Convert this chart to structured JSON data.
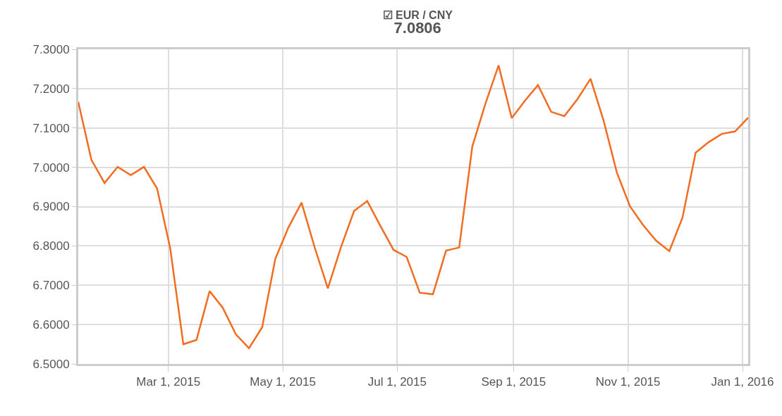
{
  "chart_data": {
    "type": "line",
    "title": "☑ EUR / CNY",
    "subtitle": "7.0806",
    "x": [
      "2015-01-12",
      "2015-01-19",
      "2015-01-26",
      "2015-02-02",
      "2015-02-09",
      "2015-02-16",
      "2015-02-23",
      "2015-03-02",
      "2015-03-09",
      "2015-03-16",
      "2015-03-23",
      "2015-03-30",
      "2015-04-06",
      "2015-04-13",
      "2015-04-20",
      "2015-04-27",
      "2015-05-04",
      "2015-05-11",
      "2015-05-18",
      "2015-05-25",
      "2015-06-01",
      "2015-06-08",
      "2015-06-15",
      "2015-06-22",
      "2015-06-29",
      "2015-07-06",
      "2015-07-13",
      "2015-07-20",
      "2015-07-27",
      "2015-08-03",
      "2015-08-10",
      "2015-08-17",
      "2015-08-24",
      "2015-08-31",
      "2015-09-07",
      "2015-09-14",
      "2015-09-21",
      "2015-09-28",
      "2015-10-05",
      "2015-10-12",
      "2015-10-19",
      "2015-10-26",
      "2015-11-02",
      "2015-11-09",
      "2015-11-16",
      "2015-11-23",
      "2015-11-30",
      "2015-12-07",
      "2015-12-14",
      "2015-12-21",
      "2015-12-28",
      "2016-01-04"
    ],
    "series": [
      {
        "color": "#f26d21",
        "values": [
          7.166,
          7.019,
          6.96,
          7.001,
          6.98,
          7.001,
          6.946,
          6.794,
          6.55,
          6.561,
          6.685,
          6.643,
          6.575,
          6.54,
          6.593,
          6.767,
          6.847,
          6.91,
          6.796,
          6.692,
          6.797,
          6.889,
          6.914,
          6.851,
          6.79,
          6.772,
          6.681,
          6.677,
          6.788,
          6.796,
          7.053,
          7.162,
          7.259,
          7.125,
          7.169,
          7.209,
          7.141,
          7.13,
          7.173,
          7.225,
          7.118,
          6.987,
          6.901,
          6.853,
          6.813,
          6.787,
          6.872,
          7.037,
          7.064,
          7.085,
          7.091,
          7.126
        ]
      }
    ],
    "xlim": [
      "2015-01-12",
      "2016-01-04"
    ],
    "xticks": [
      {
        "value": "2015-03-01",
        "label": "Mar 1, 2015"
      },
      {
        "value": "2015-05-01",
        "label": "May 1, 2015"
      },
      {
        "value": "2015-07-01",
        "label": "Jul 1, 2015"
      },
      {
        "value": "2015-09-01",
        "label": "Sep 1, 2015"
      },
      {
        "value": "2015-11-01",
        "label": "Nov 1, 2015"
      },
      {
        "value": "2016-01-01",
        "label": "Jan 1, 2016"
      }
    ],
    "ylim": [
      6.5,
      7.3
    ],
    "yticks": [
      {
        "value": 6.5,
        "label": "6.5000"
      },
      {
        "value": 6.6,
        "label": "6.6000"
      },
      {
        "value": 6.7,
        "label": "6.7000"
      },
      {
        "value": 6.8,
        "label": "6.8000"
      },
      {
        "value": 6.9,
        "label": "6.9000"
      },
      {
        "value": 7.0,
        "label": "7.0000"
      },
      {
        "value": 7.1,
        "label": "7.1000"
      },
      {
        "value": 7.2,
        "label": "7.2000"
      },
      {
        "value": 7.3,
        "label": "7.3000"
      }
    ],
    "grid": true,
    "marker": "none",
    "line_style": "solid"
  }
}
